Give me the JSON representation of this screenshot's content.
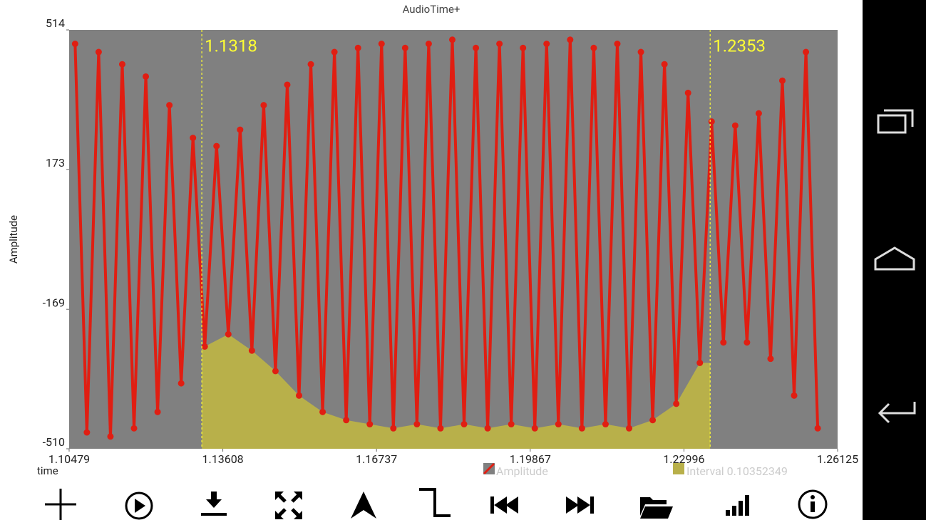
{
  "chart_data": {
    "type": "line",
    "title": "AudioTime+",
    "y_label": "Amplitude",
    "x_label": "time",
    "x": [
      1.106,
      1.1084,
      1.1108,
      1.1132,
      1.1156,
      1.118,
      1.1204,
      1.1228,
      1.1252,
      1.1276,
      1.13,
      1.1324,
      1.1348,
      1.1372,
      1.1396,
      1.142,
      1.1444,
      1.1468,
      1.1492,
      1.1516,
      1.154,
      1.1564,
      1.1588,
      1.1612,
      1.1636,
      1.166,
      1.1684,
      1.1708,
      1.1732,
      1.1756,
      1.178,
      1.1804,
      1.1828,
      1.1852,
      1.1876,
      1.19,
      1.1924,
      1.1948,
      1.1972,
      1.1996,
      1.202,
      1.2044,
      1.2068,
      1.2092,
      1.2116,
      1.214,
      1.2164,
      1.2188,
      1.2212,
      1.2236,
      1.226,
      1.2284,
      1.2308,
      1.2332,
      1.2356,
      1.238,
      1.2404,
      1.2428,
      1.2452,
      1.2476,
      1.25,
      1.2524,
      1.2548,
      1.2572
    ],
    "series": [
      {
        "name": "Amplitude",
        "color": "#e01e12",
        "values": [
          480,
          -470,
          460,
          -480,
          430,
          -460,
          400,
          -420,
          330,
          -350,
          250,
          -260,
          230,
          -230,
          270,
          -270,
          330,
          -320,
          380,
          -380,
          430,
          -420,
          460,
          -440,
          470,
          -450,
          480,
          -460,
          470,
          -450,
          480,
          -460,
          490,
          -450,
          470,
          -460,
          480,
          -450,
          470,
          -460,
          480,
          -450,
          490,
          -460,
          470,
          -450,
          480,
          -460,
          460,
          -440,
          430,
          -400,
          360,
          -300,
          290,
          -250,
          280,
          -250,
          310,
          -290,
          390,
          -380,
          460,
          -460
        ]
      }
    ],
    "xlim": [
      1.10479,
      1.26125
    ],
    "xticks": [
      1.10479,
      1.13608,
      1.16737,
      1.19867,
      1.22996,
      1.26125
    ],
    "ylim": [
      -510,
      514
    ],
    "yticks": [
      514,
      173,
      -169,
      -510
    ],
    "cursors": [
      1.1318,
      1.2353
    ],
    "cursor_color": "#ffff33",
    "interval_label": "Interval 0.10352349",
    "interval_color": "#b8b04a",
    "background": "#808080"
  }
}
